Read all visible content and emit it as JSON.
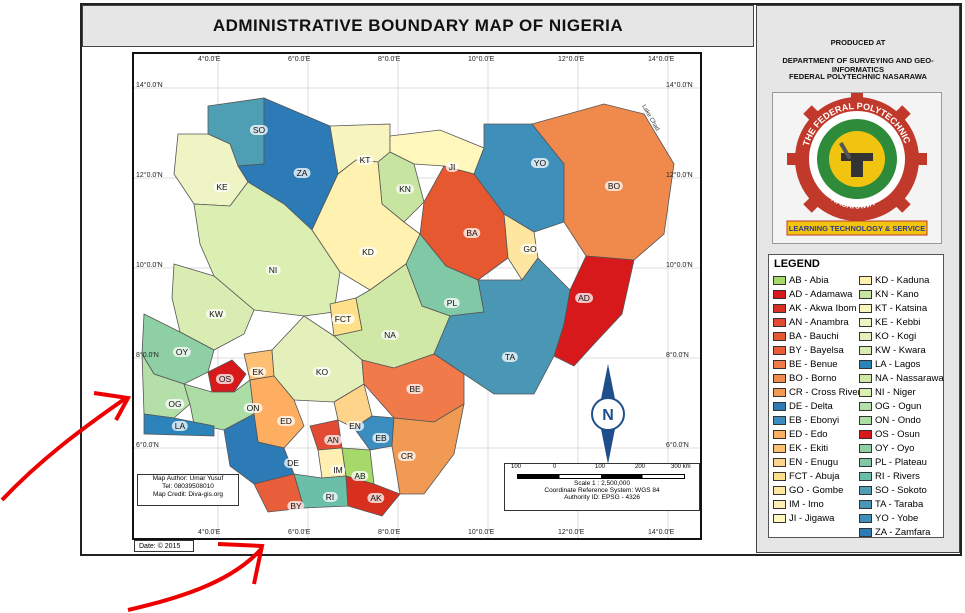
{
  "title": "ADMINISTRATIVE BOUNDARY MAP OF NIGERIA",
  "producer": {
    "line1": "PRODUCED AT",
    "line2": "DEPARTMENT OF SURVEYING AND GEO-INFORMATICS",
    "line3": "FEDERAL POLYTECHNIC NASARAWA"
  },
  "logo": {
    "top_text": "THE FEDERAL POLYTECHNIC",
    "bottom_text": "NASARAWA",
    "motto": "LEARNING TECHNOLOGY & SERVICE"
  },
  "legend": {
    "title": "LEGEND",
    "col1": [
      {
        "label": "AB - Abia",
        "color": "#a6d96a"
      },
      {
        "label": "AD - Adamawa",
        "color": "#d7191c"
      },
      {
        "label": "AK - Akwa Ibom",
        "color": "#d7301f"
      },
      {
        "label": "AN - Anambra",
        "color": "#e34a33"
      },
      {
        "label": "BA - Bauchi",
        "color": "#e6582f"
      },
      {
        "label": "BY - Bayelsa",
        "color": "#e85d3a"
      },
      {
        "label": "BE - Benue",
        "color": "#f07a4a"
      },
      {
        "label": "BO - Borno",
        "color": "#f0894c"
      },
      {
        "label": "CR - Cross River",
        "color": "#f19a54"
      },
      {
        "label": "DE - Delta",
        "color": "#2c7bb6"
      },
      {
        "label": "EB - Ebonyi",
        "color": "#3b8cbf"
      },
      {
        "label": "ED - Edo",
        "color": "#fdae61"
      },
      {
        "label": "EK - Ekiti",
        "color": "#fdbf72"
      },
      {
        "label": "EN - Enugu",
        "color": "#fed38a"
      },
      {
        "label": "FCT - Abuja",
        "color": "#fee08b"
      },
      {
        "label": "GO - Gombe",
        "color": "#fee6a0"
      },
      {
        "label": "IM - Imo",
        "color": "#ffefb0"
      },
      {
        "label": "JI - Jigawa",
        "color": "#fff7bc"
      }
    ],
    "col2": [
      {
        "label": "KD - Kaduna",
        "color": "#fff2b0"
      },
      {
        "label": "KN - Kano",
        "color": "#c7e5a0"
      },
      {
        "label": "KT - Katsina",
        "color": "#f7f4c0"
      },
      {
        "label": "KE - Kebbi",
        "color": "#eef4c4"
      },
      {
        "label": "KO - Kogi",
        "color": "#e4f0bb"
      },
      {
        "label": "KW - Kwara",
        "color": "#d9ecb1"
      },
      {
        "label": "LA - Lagos",
        "color": "#2b83ba"
      },
      {
        "label": "NA - Nassarawa",
        "color": "#cfe8a5"
      },
      {
        "label": "NI - Niger",
        "color": "#dcefb2"
      },
      {
        "label": "OG - Ogun",
        "color": "#b5dfa8"
      },
      {
        "label": "ON - Ondo",
        "color": "#abdda4"
      },
      {
        "label": "OS - Osun",
        "color": "#d7191c"
      },
      {
        "label": "OY - Oyo",
        "color": "#8ecfa3"
      },
      {
        "label": "PL - Plateau",
        "color": "#80c8a6"
      },
      {
        "label": "RI - Rivers",
        "color": "#6bbfa9"
      },
      {
        "label": "SO - Sokoto",
        "color": "#4f9fb4"
      },
      {
        "label": "TA - Taraba",
        "color": "#4a97b5"
      },
      {
        "label": "YO - Yobe",
        "color": "#3f8fbb"
      },
      {
        "label": "ZA - Zamfara",
        "color": "#2c7bb6"
      }
    ]
  },
  "grid": {
    "top_ticks": [
      "4°0.0'E",
      "6°0.0'E",
      "8°0.0'E",
      "10°0.0'E",
      "12°0.0'E",
      "14°0.0'E"
    ],
    "bottom_ticks": [
      "4°0.0'E",
      "6°0.0'E",
      "8°0.0'E",
      "10°0.0'E",
      "12°0.0'E",
      "14°0.0'E"
    ],
    "left_ticks": [
      "14°0.0'N",
      "12°0.0'N",
      "10°0.0'N",
      "8°0.0'N",
      "6°0.0'N"
    ],
    "right_ticks": [
      "14°0.0'N",
      "12°0.0'N",
      "10°0.0'N",
      "8°0.0'N",
      "6°0.0'N"
    ]
  },
  "states": [
    {
      "code": "SO"
    },
    {
      "code": "ZA"
    },
    {
      "code": "KT"
    },
    {
      "code": "JI"
    },
    {
      "code": "YO"
    },
    {
      "code": "BO"
    },
    {
      "code": "KE"
    },
    {
      "code": "KN"
    },
    {
      "code": "BA"
    },
    {
      "code": "GO"
    },
    {
      "code": "KD"
    },
    {
      "code": "NI"
    },
    {
      "code": "AD"
    },
    {
      "code": "PL"
    },
    {
      "code": "FCT"
    },
    {
      "code": "KW"
    },
    {
      "code": "NA"
    },
    {
      "code": "TA"
    },
    {
      "code": "OY"
    },
    {
      "code": "OS"
    },
    {
      "code": "EK"
    },
    {
      "code": "KO"
    },
    {
      "code": "BE"
    },
    {
      "code": "OG"
    },
    {
      "code": "ON"
    },
    {
      "code": "LA"
    },
    {
      "code": "ED"
    },
    {
      "code": "EN"
    },
    {
      "code": "AN"
    },
    {
      "code": "EB"
    },
    {
      "code": "DE"
    },
    {
      "code": "CR"
    },
    {
      "code": "IM"
    },
    {
      "code": "AB"
    },
    {
      "code": "BY"
    },
    {
      "code": "RI"
    },
    {
      "code": "AK"
    }
  ],
  "lake_label": "Lake Chad",
  "north_label": "N",
  "info": {
    "author": "Map Author: Umar Yusuf",
    "tel": "Tel: 08039508010",
    "credit": "Map Credit: Diva-gis.org"
  },
  "scale": {
    "ticks": [
      "100",
      "0",
      "100",
      "200",
      "300 km"
    ],
    "ratio": "Scale 1 : 2,500,000",
    "crs": "Coordinate Reference System: WGS 84",
    "authority": "Authority ID: EPSG - 4326"
  },
  "date": "Date: © 2015"
}
